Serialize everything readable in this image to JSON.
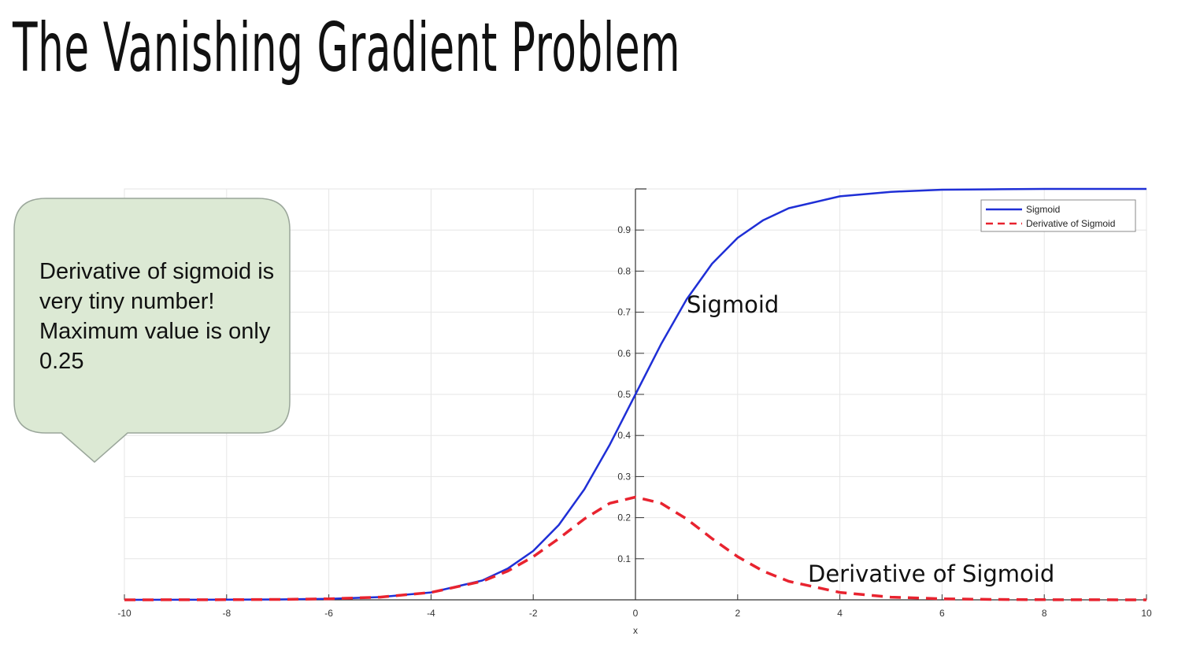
{
  "page": {
    "title": "The Vanishing Gradient Problem"
  },
  "callout": {
    "text": "Derivative of sigmoid is very tiny number! Maximum value is only 0.25",
    "fill": "#dce9d4",
    "stroke": "#9aa69a"
  },
  "annotations": {
    "sigmoid_label": "Sigmoid",
    "derivative_label": "Derivative of Sigmoid"
  },
  "chart_data": {
    "type": "line",
    "title": "",
    "xlabel": "x",
    "ylabel": "",
    "xlim": [
      -10,
      10
    ],
    "ylim": [
      0,
      1
    ],
    "xticks": [
      -10,
      -8,
      -6,
      -4,
      -2,
      0,
      2,
      4,
      6,
      8,
      10
    ],
    "yticks": [
      0.1,
      0.2,
      0.3,
      0.4,
      0.5,
      0.6,
      0.7,
      0.8,
      0.9
    ],
    "grid": true,
    "legend": "top-right",
    "x": [
      -10,
      -9,
      -8,
      -7,
      -6,
      -5,
      -4,
      -3,
      -2.5,
      -2,
      -1.5,
      -1,
      -0.5,
      0,
      0.5,
      1,
      1.5,
      2,
      2.5,
      3,
      4,
      5,
      6,
      7,
      8,
      9,
      10
    ],
    "series": [
      {
        "name": "Sigmoid",
        "color": "#1f2fd6",
        "style": "solid",
        "values": [
          0.0,
          0.0001,
          0.0003,
          0.0009,
          0.0025,
          0.0067,
          0.018,
          0.047,
          0.076,
          0.119,
          0.182,
          0.269,
          0.378,
          0.5,
          0.622,
          0.731,
          0.818,
          0.881,
          0.924,
          0.953,
          0.982,
          0.993,
          0.998,
          0.999,
          1.0,
          1.0,
          1.0
        ]
      },
      {
        "name": "Derivative of Sigmoid",
        "color": "#e8232f",
        "style": "dashed",
        "values": [
          0.0,
          0.0001,
          0.0003,
          0.0009,
          0.0025,
          0.0066,
          0.018,
          0.045,
          0.07,
          0.105,
          0.149,
          0.197,
          0.235,
          0.25,
          0.235,
          0.197,
          0.149,
          0.105,
          0.07,
          0.045,
          0.018,
          0.0066,
          0.0025,
          0.0009,
          0.0003,
          0.0001,
          0.0
        ]
      }
    ]
  }
}
